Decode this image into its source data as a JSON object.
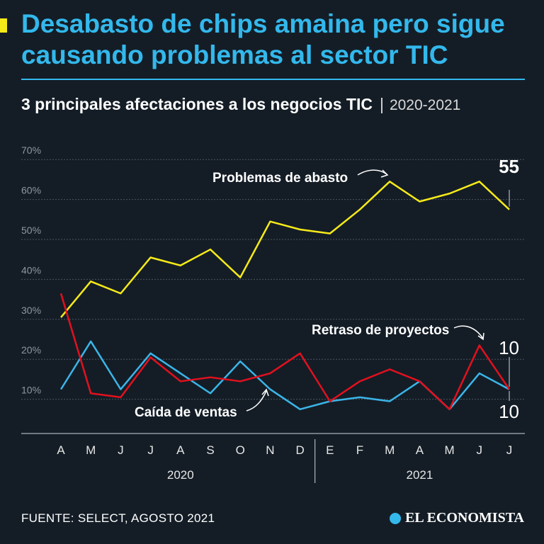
{
  "header": {
    "title": "Desabasto de chips amaina pero sigue causando problemas al sector TIC",
    "subtitle": "3 principales afectaciones a los negocios TIC",
    "separator": "|",
    "years": "2020-2021"
  },
  "footer": {
    "source": "FUENTE: SELECT, AGOSTO 2021",
    "brand": "EL ECONOMISTA"
  },
  "colors": {
    "background": "#141d26",
    "accent": "#33b8ec",
    "marker": "#f7ea19"
  },
  "chart_data": {
    "type": "line",
    "x": [
      "A",
      "M",
      "J",
      "J",
      "A",
      "S",
      "O",
      "N",
      "D",
      "E",
      "F",
      "M",
      "A",
      "M",
      "J",
      "J"
    ],
    "year_labels": [
      "2020",
      "2021"
    ],
    "yticks": [
      "70%",
      "60%",
      "50%",
      "40%",
      "30%",
      "20%",
      "10%"
    ],
    "ylim": [
      0,
      70
    ],
    "grid": true,
    "series": [
      {
        "name": "Problemas de abasto",
        "color": "#f7ea19",
        "values": [
          28,
          37,
          34,
          43,
          41,
          45,
          38,
          52,
          50,
          49,
          55,
          62,
          57,
          59,
          62,
          55
        ],
        "end_label": "55"
      },
      {
        "name": "Retraso de proyectos",
        "color": "#e3101e",
        "values": [
          34,
          9,
          8,
          18,
          12,
          13,
          12,
          14,
          19,
          7,
          12,
          15,
          12,
          5,
          21,
          10
        ],
        "end_label": "10"
      },
      {
        "name": "Caída de ventas",
        "color": "#3bb5e8",
        "values": [
          10,
          22,
          10,
          19,
          14,
          9,
          17,
          10,
          5,
          7,
          8,
          7,
          12,
          5,
          14,
          10
        ],
        "end_label": "10"
      }
    ]
  }
}
